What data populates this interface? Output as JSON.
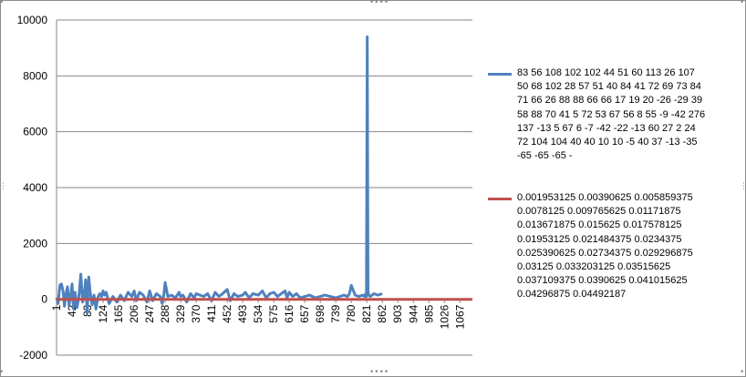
{
  "chart_data": {
    "type": "line",
    "title": "",
    "xlabel": "",
    "ylabel": "",
    "ylim": [
      -2000,
      10000
    ],
    "yticks": [
      "10000",
      "8000",
      "6000",
      "4000",
      "2000",
      "0",
      "-2000"
    ],
    "xticks": [
      "1",
      "42",
      "83",
      "124",
      "165",
      "206",
      "247",
      "288",
      "329",
      "370",
      "411",
      "452",
      "493",
      "534",
      "575",
      "616",
      "657",
      "698",
      "739",
      "780",
      "821",
      "862",
      "903",
      "944",
      "985",
      "1026",
      "1067"
    ],
    "xlim": [
      1,
      1100
    ],
    "grid": true,
    "legend_position": "right",
    "series": [
      {
        "name": "83 56 108 102 102 44 51 60 113 26 107 50 68 102 28 57 51 40 84 41 72 69 73 84 71 66 26 88 88 66 66 17 19 20 -26 -29 39 58 88 70 41 5 72 53 67 56 8 55 -9 -42 276 137 -13 5 67 6 -7 -42 -22 -13 60 27 2 24 72 104 104 40 40 10 10 -5 40 37 -13 -35 -65 -65 -65 -",
        "color": "#4f81bd",
        "x": [
          1,
          5,
          10,
          14,
          18,
          22,
          26,
          30,
          34,
          38,
          42,
          46,
          50,
          55,
          60,
          65,
          70,
          74,
          78,
          82,
          86,
          90,
          95,
          100,
          105,
          110,
          115,
          120,
          124,
          128,
          132,
          140,
          150,
          160,
          170,
          180,
          190,
          200,
          206,
          212,
          220,
          230,
          240,
          247,
          255,
          265,
          275,
          280,
          285,
          288,
          295,
          305,
          315,
          325,
          329,
          335,
          345,
          355,
          365,
          370,
          380,
          390,
          400,
          411,
          420,
          430,
          440,
          452,
          460,
          470,
          480,
          493,
          500,
          510,
          520,
          534,
          545,
          555,
          565,
          575,
          585,
          595,
          605,
          610,
          616,
          625,
          635,
          645,
          657,
          670,
          685,
          698,
          710,
          725,
          739,
          750,
          760,
          770,
          775,
          780,
          790,
          800,
          810,
          815,
          818,
          820,
          822,
          824,
          826,
          830,
          840,
          850,
          862
        ],
        "y": [
          50,
          -150,
          500,
          550,
          300,
          -250,
          200,
          450,
          -200,
          100,
          550,
          -350,
          250,
          -300,
          100,
          900,
          -100,
          150,
          700,
          -500,
          800,
          250,
          -200,
          150,
          -350,
          50,
          200,
          100,
          300,
          150,
          250,
          -150,
          100,
          -100,
          150,
          -50,
          250,
          100,
          300,
          -50,
          250,
          150,
          -100,
          300,
          -50,
          200,
          100,
          -150,
          200,
          600,
          100,
          150,
          50,
          250,
          100,
          150,
          -100,
          200,
          50,
          200,
          150,
          100,
          200,
          -50,
          250,
          100,
          200,
          350,
          -50,
          200,
          100,
          150,
          250,
          50,
          200,
          150,
          300,
          50,
          200,
          250,
          100,
          200,
          300,
          50,
          250,
          100,
          200,
          50,
          100,
          150,
          50,
          100,
          150,
          100,
          50,
          100,
          150,
          100,
          200,
          500,
          150,
          100,
          150,
          100,
          200,
          100,
          9400,
          300,
          150,
          100,
          200,
          150,
          200
        ]
      },
      {
        "name": "0.001953125 0.00390625 0.005859375 0.0078125 0.009765625 0.01171875 0.013671875 0.015625 0.017578125 0.01953125 0.021484375 0.0234375 0.025390625 0.02734375 0.029296875 0.03125 0.033203125 0.03515625 0.037109375 0.0390625 0.041015625 0.04296875 0.04492187",
        "color": "#c0504d",
        "x": [
          1,
          1100
        ],
        "y": [
          0,
          0
        ]
      }
    ]
  }
}
